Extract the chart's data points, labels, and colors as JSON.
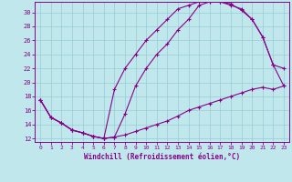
{
  "xlabel": "Windchill (Refroidissement éolien,°C)",
  "bg_color": "#c0e8ec",
  "line_color": "#880088",
  "grid_color": "#98ccd4",
  "xmin": -0.5,
  "xmax": 23.5,
  "ymin": 11.5,
  "ymax": 31.5,
  "yticks": [
    12,
    14,
    16,
    18,
    20,
    22,
    24,
    26,
    28,
    30
  ],
  "xticks": [
    0,
    1,
    2,
    3,
    4,
    5,
    6,
    7,
    8,
    9,
    10,
    11,
    12,
    13,
    14,
    15,
    16,
    17,
    18,
    19,
    20,
    21,
    22,
    23
  ],
  "line1_x": [
    0,
    1,
    2,
    3,
    4,
    5,
    6,
    7,
    8,
    9,
    10,
    11,
    12,
    13,
    14,
    15,
    16,
    17,
    18,
    19,
    20,
    21,
    22,
    23
  ],
  "line1_y": [
    17.5,
    15.0,
    14.2,
    13.2,
    12.8,
    12.3,
    12.0,
    12.2,
    12.5,
    13.0,
    13.5,
    14.0,
    14.5,
    15.2,
    16.0,
    16.5,
    17.0,
    17.5,
    18.0,
    18.5,
    19.0,
    19.3,
    19.0,
    19.5
  ],
  "line2_x": [
    0,
    1,
    2,
    3,
    4,
    5,
    6,
    7,
    8,
    9,
    10,
    11,
    12,
    13,
    14,
    15,
    16,
    17,
    18,
    19,
    20,
    21,
    22,
    23
  ],
  "line2_y": [
    17.5,
    15.0,
    14.2,
    13.2,
    12.8,
    12.3,
    12.0,
    12.2,
    15.5,
    19.5,
    22.0,
    24.0,
    25.5,
    27.5,
    29.0,
    31.0,
    31.5,
    31.5,
    31.0,
    30.5,
    29.0,
    26.5,
    22.5,
    22.0
  ],
  "line3_x": [
    0,
    1,
    2,
    3,
    4,
    5,
    6,
    7,
    8,
    9,
    10,
    11,
    12,
    13,
    14,
    15,
    16,
    17,
    18,
    19,
    20,
    21,
    22,
    23
  ],
  "line3_y": [
    17.5,
    15.0,
    14.2,
    13.2,
    12.8,
    12.3,
    12.0,
    19.0,
    22.0,
    24.0,
    26.0,
    27.5,
    29.0,
    30.5,
    31.0,
    31.5,
    31.5,
    31.5,
    31.2,
    30.3,
    29.0,
    26.5,
    22.5,
    19.5
  ]
}
